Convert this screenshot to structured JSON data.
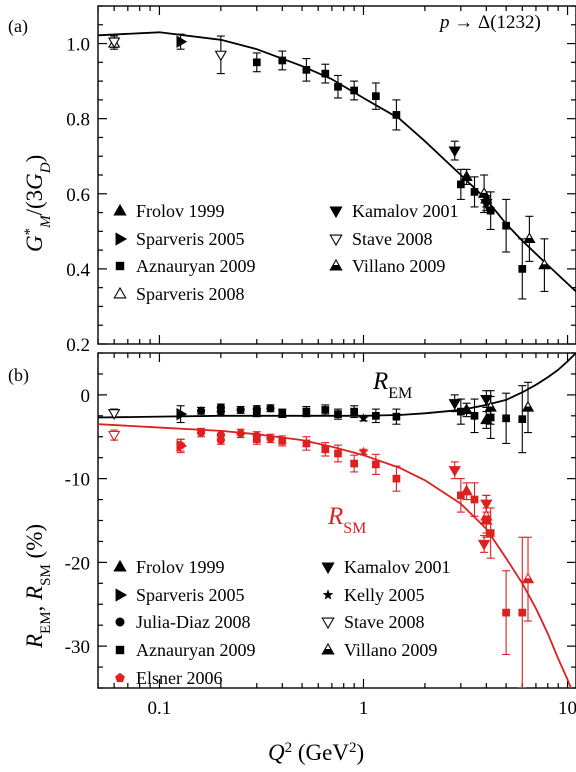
{
  "chart_data": [
    {
      "type": "scatter",
      "panel_label": "(a)",
      "annotation": "p → Δ(1232)",
      "xlabel": "Q2 (GeV2)",
      "ylabel": "G*M/(3GD)",
      "x_scale": "log",
      "xlim": [
        0.05,
        11
      ],
      "ylim": [
        0.2,
        1.1
      ],
      "x_ticks": [
        0.1,
        1,
        10
      ],
      "x_tick_labels": [
        "0.1",
        "1",
        "10"
      ],
      "y_ticks": [
        0.2,
        0.4,
        0.6,
        0.8,
        1.0
      ],
      "y_tick_labels": [
        "0.2",
        "0.4",
        "0.6",
        "0.8",
        "1.0"
      ],
      "legend_position": "lower-left",
      "series": [
        {
          "name": "Frolov 1999",
          "marker": "triangle-up-filled",
          "color": "#000000",
          "points": [
            [
              3.2,
              0.645,
              0.02
            ],
            [
              4.0,
              0.585,
              0.02
            ]
          ]
        },
        {
          "name": "Sparveris 2005",
          "marker": "triangle-right-filled",
          "color": "#000000",
          "points": [
            [
              0.127,
              1.005,
              0.02
            ]
          ]
        },
        {
          "name": "Aznauryan 2009",
          "marker": "square-filled",
          "color": "#000000",
          "points": [
            [
              0.3,
              0.95,
              0.025
            ],
            [
              0.4,
              0.955,
              0.025
            ],
            [
              0.525,
              0.93,
              0.03
            ],
            [
              0.65,
              0.92,
              0.025
            ],
            [
              0.75,
              0.885,
              0.03
            ],
            [
              0.9,
              0.875,
              0.025
            ],
            [
              1.15,
              0.86,
              0.035
            ],
            [
              1.45,
              0.81,
              0.04
            ],
            [
              3.0,
              0.625,
              0.04
            ],
            [
              3.5,
              0.605,
              0.04
            ],
            [
              4.2,
              0.555,
              0.05
            ],
            [
              5.0,
              0.515,
              0.07
            ],
            [
              6.0,
              0.4,
              0.08
            ]
          ]
        },
        {
          "name": "Sparveris 2008",
          "marker": "triangle-up-open",
          "color": "#000000",
          "points": [
            [
              0.06,
              1.0,
              0.015
            ]
          ]
        },
        {
          "name": "Kamalov 2001",
          "marker": "triangle-down-filled",
          "color": "#000000",
          "points": [
            [
              2.8,
              0.715,
              0.025
            ],
            [
              4.0,
              0.575,
              0.02
            ]
          ]
        },
        {
          "name": "Stave 2008",
          "marker": "triangle-down-open",
          "color": "#000000",
          "points": [
            [
              0.06,
              1.005,
              0.015
            ],
            [
              0.2,
              0.97,
              0.05
            ]
          ]
        },
        {
          "name": "Villano 2009",
          "marker": "triangle-up-halffilled",
          "color": "#000000",
          "points": [
            [
              3.9,
              0.6,
              0.05
            ],
            [
              6.5,
              0.48,
              0.06
            ],
            [
              7.7,
              0.41,
              0.07
            ]
          ]
        }
      ],
      "curves": [
        {
          "color": "#000000",
          "points": [
            [
              0.05,
              1.022
            ],
            [
              0.1,
              1.03
            ],
            [
              0.2,
              1.01
            ],
            [
              0.3,
              0.985
            ],
            [
              0.5,
              0.94
            ],
            [
              0.7,
              0.905
            ],
            [
              1.0,
              0.855
            ],
            [
              1.5,
              0.8
            ],
            [
              2.0,
              0.74
            ],
            [
              3.0,
              0.65
            ],
            [
              4.0,
              0.585
            ],
            [
              5.0,
              0.52
            ],
            [
              6.0,
              0.475
            ],
            [
              8.0,
              0.41
            ],
            [
              11.0,
              0.34
            ]
          ]
        }
      ]
    },
    {
      "type": "scatter",
      "panel_label": "(b)",
      "xlabel": "Q2 (GeV2)",
      "ylabel": "REM, RSM (%)",
      "x_scale": "log",
      "xlim": [
        0.05,
        11
      ],
      "ylim": [
        -35,
        5
      ],
      "x_ticks": [
        0.1,
        1,
        10
      ],
      "x_tick_labels": [
        "0.1",
        "1",
        "10"
      ],
      "y_ticks": [
        -30,
        -20,
        -10,
        0
      ],
      "y_tick_labels": [
        "-30",
        "-20",
        "-10",
        "0"
      ],
      "legend_position": "lower-left",
      "series": [
        {
          "name": "Frolov 1999",
          "marker": "triangle-up-filled",
          "color": "#000000",
          "points": [
            [
              3.2,
              -1.8,
              0.8
            ],
            [
              4.0,
              -3.0,
              1.0
            ]
          ]
        },
        {
          "name": "Frolov 1999",
          "marker": "triangle-up-filled",
          "color": "#dd2020",
          "points": [
            [
              3.2,
              -11.5,
              1.0
            ],
            [
              4.0,
              -15.0,
              1.5
            ]
          ]
        },
        {
          "name": "Sparveris 2005",
          "marker": "triangle-right-filled",
          "color": "#000000",
          "points": [
            [
              0.127,
              -2.3,
              1.0
            ]
          ]
        },
        {
          "name": "Sparveris 2005",
          "marker": "triangle-right-filled",
          "color": "#dd2020",
          "points": [
            [
              0.127,
              -6.1,
              0.8
            ]
          ]
        },
        {
          "name": "Julia-Diaz 2008",
          "marker": "circle-filled",
          "color": "#000000",
          "points": [
            [
              0.16,
              -1.9,
              0.4
            ],
            [
              0.2,
              -2.0,
              0.4
            ],
            [
              0.25,
              -1.8,
              0.4
            ],
            [
              0.3,
              -1.7,
              0.4
            ],
            [
              0.35,
              -1.6,
              0.4
            ],
            [
              0.2,
              -1.5,
              0.4
            ]
          ]
        },
        {
          "name": "Julia-Diaz 2008",
          "marker": "circle-filled",
          "color": "#dd2020",
          "points": [
            [
              0.16,
              -4.5,
              0.5
            ],
            [
              0.2,
              -4.8,
              0.5
            ],
            [
              0.25,
              -4.6,
              0.5
            ],
            [
              0.3,
              -4.9,
              0.5
            ],
            [
              0.35,
              -5.2,
              0.5
            ],
            [
              0.2,
              -5.4,
              0.5
            ]
          ]
        },
        {
          "name": "Aznauryan 2009",
          "marker": "square-filled",
          "color": "#000000",
          "points": [
            [
              0.3,
              -2.1,
              0.5
            ],
            [
              0.4,
              -2.2,
              0.5
            ],
            [
              0.525,
              -2.0,
              0.6
            ],
            [
              0.65,
              -1.8,
              0.6
            ],
            [
              0.75,
              -2.3,
              0.6
            ],
            [
              0.9,
              -2.0,
              0.7
            ],
            [
              1.15,
              -2.5,
              0.8
            ],
            [
              1.45,
              -2.6,
              0.9
            ],
            [
              3.0,
              -2.0,
              1.5
            ],
            [
              3.5,
              -2.5,
              2.0
            ],
            [
              4.2,
              -2.7,
              2.5
            ],
            [
              5.0,
              -2.8,
              3.0
            ],
            [
              6.0,
              -2.9,
              4.0
            ]
          ]
        },
        {
          "name": "Aznauryan 2009",
          "marker": "square-filled",
          "color": "#dd2020",
          "points": [
            [
              0.3,
              -5.3,
              0.6
            ],
            [
              0.4,
              -5.5,
              0.6
            ],
            [
              0.525,
              -5.8,
              0.8
            ],
            [
              0.65,
              -6.5,
              0.8
            ],
            [
              0.75,
              -7.0,
              1.0
            ],
            [
              0.9,
              -8.2,
              1.0
            ],
            [
              1.15,
              -8.3,
              1.2
            ],
            [
              1.45,
              -10.0,
              1.5
            ],
            [
              3.0,
              -12.0,
              2.0
            ],
            [
              3.5,
              -12.5,
              2.0
            ],
            [
              4.2,
              -16.5,
              3.0
            ],
            [
              5.0,
              -26.0,
              5.0
            ],
            [
              6.0,
              -26.0,
              9.0
            ]
          ]
        },
        {
          "name": "Elsner 2006",
          "marker": "pentagon-filled",
          "color": "#dd2020",
          "points": [
            [
              0.127,
              -6.0,
              0.7
            ]
          ]
        },
        {
          "name": "Kamalov 2001",
          "marker": "triangle-down-filled",
          "color": "#000000",
          "points": [
            [
              2.8,
              -1.0,
              1.0
            ],
            [
              4.0,
              -0.5,
              1.0
            ]
          ]
        },
        {
          "name": "Kamalov 2001",
          "marker": "triangle-down-filled",
          "color": "#dd2020",
          "points": [
            [
              2.8,
              -9.0,
              1.0
            ],
            [
              4.0,
              -13.0,
              1.0
            ],
            [
              3.9,
              -17.8,
              1.0
            ]
          ]
        },
        {
          "name": "Kelly 2005",
          "marker": "star-filled",
          "color": "#000000",
          "points": [
            [
              1.0,
              -2.8,
              0.3
            ]
          ]
        },
        {
          "name": "Kelly 2005",
          "marker": "star-filled",
          "color": "#dd2020",
          "points": [
            [
              1.0,
              -6.8,
              0.3
            ]
          ]
        },
        {
          "name": "Stave 2008",
          "marker": "triangle-down-open",
          "color": "#000000",
          "points": [
            [
              0.06,
              -2.2,
              0.5
            ]
          ]
        },
        {
          "name": "Stave 2008",
          "marker": "triangle-down-open",
          "color": "#dd2020",
          "points": [
            [
              0.06,
              -4.8,
              0.6
            ]
          ]
        },
        {
          "name": "Villano 2009",
          "marker": "triangle-up-halffilled",
          "color": "#000000",
          "points": [
            [
              4.2,
              -1.5,
              2.0
            ],
            [
              6.4,
              -1.5,
              3.0
            ]
          ]
        },
        {
          "name": "Villano 2009",
          "marker": "triangle-up-halffilled",
          "color": "#dd2020",
          "points": [
            [
              4.0,
              -14.5,
              2.5
            ],
            [
              6.4,
              -22.0,
              5.0
            ]
          ]
        }
      ],
      "curves": [
        {
          "name": "REM",
          "color": "#000000",
          "points": [
            [
              0.05,
              -2.7
            ],
            [
              0.1,
              -2.6
            ],
            [
              0.2,
              -2.5
            ],
            [
              0.4,
              -2.5
            ],
            [
              0.7,
              -2.5
            ],
            [
              1.0,
              -2.5
            ],
            [
              1.5,
              -2.4
            ],
            [
              2.0,
              -2.2
            ],
            [
              3.0,
              -1.8
            ],
            [
              4.0,
              -1.2
            ],
            [
              5.0,
              -0.6
            ],
            [
              6.0,
              0.3
            ],
            [
              7.0,
              1.2
            ],
            [
              8.0,
              2.1
            ],
            [
              9.0,
              3.0
            ],
            [
              10.0,
              4.0
            ],
            [
              11.0,
              5.0
            ]
          ]
        },
        {
          "name": "RSM",
          "color": "#dd2020",
          "points": [
            [
              0.05,
              -3.5
            ],
            [
              0.1,
              -3.9
            ],
            [
              0.2,
              -4.3
            ],
            [
              0.3,
              -4.7
            ],
            [
              0.5,
              -5.4
            ],
            [
              0.7,
              -6.2
            ],
            [
              1.0,
              -7.2
            ],
            [
              1.5,
              -8.7
            ],
            [
              2.0,
              -10.2
            ],
            [
              3.0,
              -13.0
            ],
            [
              4.0,
              -16.0
            ],
            [
              5.0,
              -19.5
            ],
            [
              6.0,
              -22.5
            ],
            [
              7.0,
              -25.5
            ],
            [
              8.0,
              -28.5
            ],
            [
              9.0,
              -31.5
            ],
            [
              10.0,
              -34.0
            ],
            [
              11.0,
              -36.5
            ]
          ]
        }
      ]
    }
  ],
  "legend_a": [
    {
      "label": "Frolov 1999",
      "marker": "triangle-up-filled"
    },
    {
      "label": "Sparveris 2005",
      "marker": "triangle-right-filled"
    },
    {
      "label": "Aznauryan 2009",
      "marker": "square-filled"
    },
    {
      "label": "Sparveris 2008",
      "marker": "triangle-up-open"
    },
    {
      "label": "Kamalov 2001",
      "marker": "triangle-down-filled"
    },
    {
      "label": "Stave 2008",
      "marker": "triangle-down-open"
    },
    {
      "label": "Villano 2009",
      "marker": "triangle-up-halffilled"
    }
  ],
  "legend_b": [
    {
      "label": "Frolov 1999",
      "marker": "triangle-up-filled",
      "color": "#000000"
    },
    {
      "label": "Sparveris 2005",
      "marker": "triangle-right-filled",
      "color": "#000000"
    },
    {
      "label": "Julia-Diaz 2008",
      "marker": "circle-filled",
      "color": "#000000"
    },
    {
      "label": "Aznauryan 2009",
      "marker": "square-filled",
      "color": "#000000"
    },
    {
      "label": "Elsner 2006",
      "marker": "pentagon-filled",
      "color": "#dd2020"
    },
    {
      "label": "Kamalov 2001",
      "marker": "triangle-down-filled",
      "color": "#000000"
    },
    {
      "label": "Kelly 2005",
      "marker": "star-filled",
      "color": "#000000"
    },
    {
      "label": "Stave 2008",
      "marker": "triangle-down-open",
      "color": "#000000"
    },
    {
      "label": "Villano 2009",
      "marker": "triangle-up-halffilled",
      "color": "#000000"
    }
  ],
  "curve_labels": {
    "rem": "R_EM",
    "rsm": "R_SM"
  },
  "colors": {
    "rem": "#000000",
    "rsm": "#dd2020"
  }
}
